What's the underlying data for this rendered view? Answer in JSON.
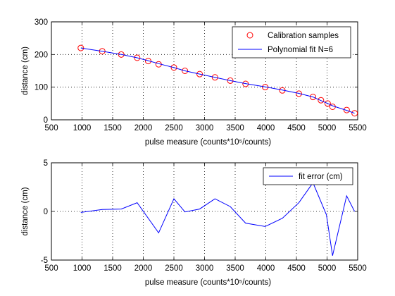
{
  "chart_data": [
    {
      "type": "scatter+line",
      "xlabel": "pulse measure (counts*10⁵/counts)",
      "ylabel": "distance (cm)",
      "xlim": [
        500,
        5500
      ],
      "ylim": [
        0,
        300
      ],
      "xticks": [
        "500",
        "1000",
        "1500",
        "2000",
        "2500",
        "3000",
        "3500",
        "4000",
        "4500",
        "5000",
        "5500"
      ],
      "yticks": [
        "0",
        "100",
        "200",
        "300"
      ],
      "grid": true,
      "legend_position": "top-right",
      "series": [
        {
          "name": "Calibration samples",
          "kind": "scatter",
          "marker": "circle",
          "color": "#ff0000",
          "x": [
            980,
            1330,
            1640,
            1900,
            2080,
            2250,
            2500,
            2680,
            2920,
            3170,
            3420,
            3670,
            3990,
            4270,
            4540,
            4770,
            4900,
            5010,
            5090,
            5320,
            5450
          ],
          "y": [
            220,
            210,
            200,
            190,
            180,
            170,
            160,
            150,
            140,
            130,
            120,
            110,
            100,
            90,
            80,
            70,
            60,
            50,
            40,
            30,
            20
          ]
        },
        {
          "name": "Polynomial fit N=6",
          "kind": "line",
          "color": "#0000ff",
          "x": [
            980,
            1330,
            1640,
            1900,
            2080,
            2250,
            2500,
            2680,
            2920,
            3170,
            3420,
            3670,
            3990,
            4270,
            4540,
            4770,
            4900,
            5010,
            5090,
            5320,
            5450
          ],
          "y": [
            220,
            210,
            200,
            190,
            181,
            172,
            160,
            150,
            140,
            130,
            120,
            111,
            101,
            91,
            81,
            70,
            59,
            50,
            43,
            29,
            20
          ]
        }
      ]
    },
    {
      "type": "line",
      "xlabel": "pulse measure (counts*10⁵/counts)",
      "ylabel": "distance (cm)",
      "xlim": [
        500,
        5500
      ],
      "ylim": [
        -5,
        5
      ],
      "xticks": [
        "500",
        "1000",
        "1500",
        "2000",
        "2500",
        "3000",
        "3500",
        "4000",
        "4500",
        "5000",
        "5500"
      ],
      "yticks": [
        "-5",
        "0",
        "5"
      ],
      "grid": true,
      "legend_position": "top-right",
      "series": [
        {
          "name": "fit error (cm)",
          "kind": "line",
          "color": "#0000ff",
          "x": [
            980,
            1330,
            1640,
            1900,
            2250,
            2500,
            2680,
            2920,
            3170,
            3420,
            3670,
            3990,
            4270,
            4540,
            4770,
            4990,
            5090,
            5320,
            5450
          ],
          "y": [
            -0.1,
            0.2,
            0.25,
            0.9,
            -2.2,
            1.3,
            -0.05,
            0.25,
            1.3,
            0.5,
            -1.2,
            -1.55,
            -0.7,
            0.9,
            2.95,
            -0.35,
            -4.55,
            1.6,
            0.0
          ]
        }
      ]
    }
  ]
}
